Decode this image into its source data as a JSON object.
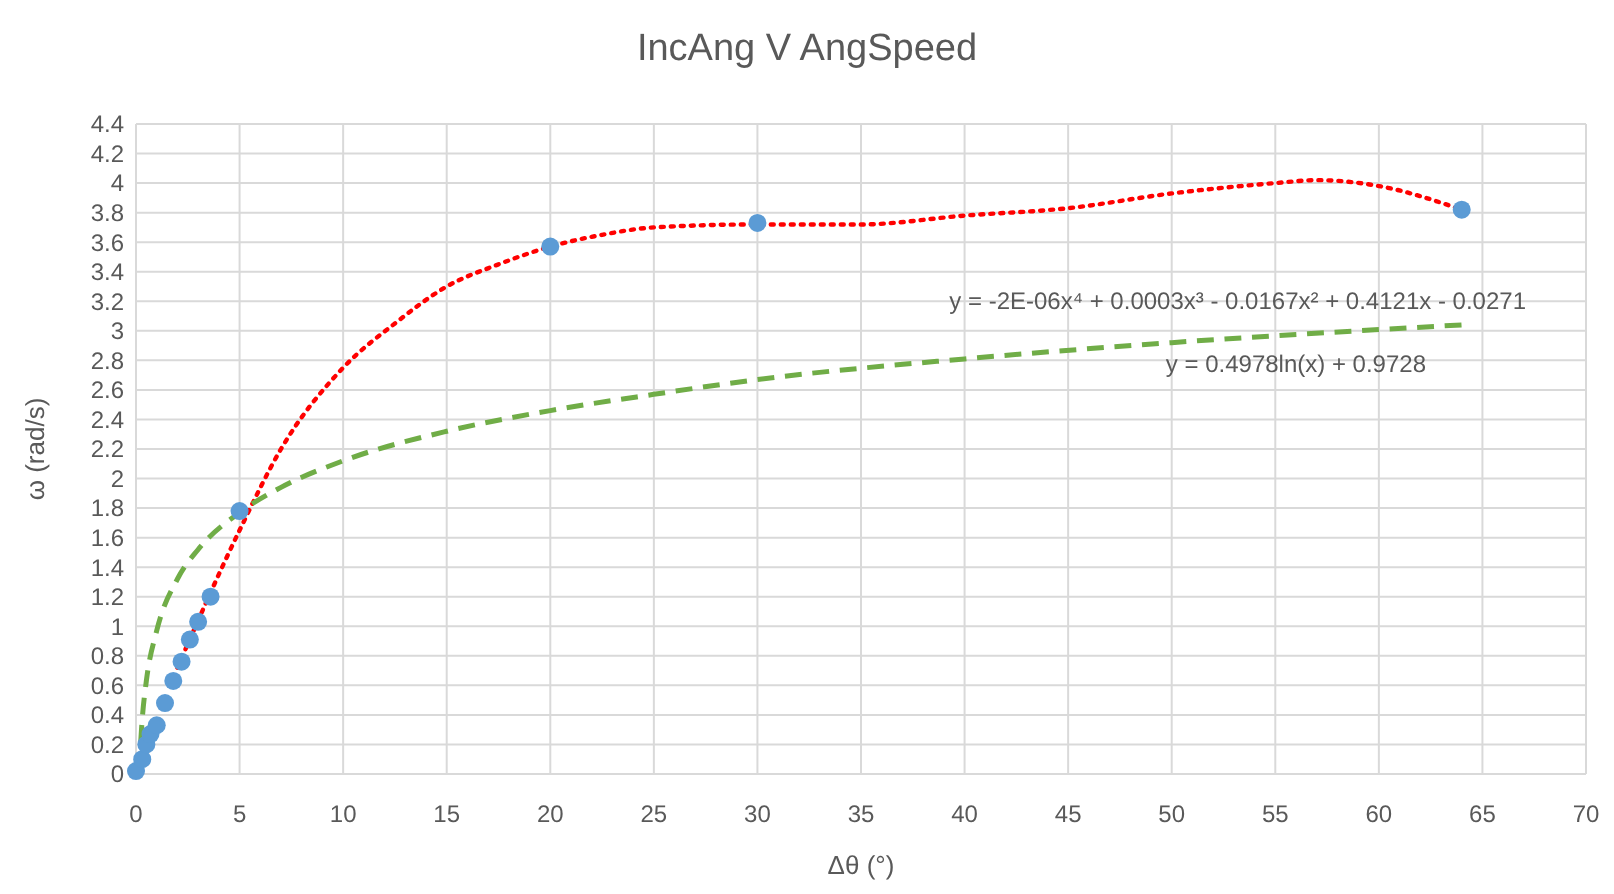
{
  "chart_data": {
    "type": "scatter",
    "title": "IncAng V AngSpeed",
    "xlabel": "Δθ (°)",
    "ylabel": "ω (rad/s)",
    "xlim": [
      0,
      70
    ],
    "xticks": [
      0,
      5,
      10,
      15,
      20,
      25,
      30,
      35,
      40,
      45,
      50,
      55,
      60,
      65,
      70
    ],
    "ylim": [
      0,
      4.4
    ],
    "yticks": [
      0,
      0.2,
      0.4,
      0.6,
      0.8,
      1,
      1.2,
      1.4,
      1.6,
      1.8,
      2,
      2.2,
      2.4,
      2.6,
      2.8,
      3,
      3.2,
      3.4,
      3.6,
      3.8,
      4,
      4.2,
      4.4
    ],
    "grid": true,
    "annotations": [
      "y = -2E-06x⁴ + 0.0003x³ - 0.0167x² + 0.4121x - 0.0271",
      "y = 0.4978ln(x) + 0.9728"
    ],
    "series": [
      {
        "type": "line",
        "color": "#ff0000",
        "line_style": "dotted",
        "marker": "none",
        "x": [
          2,
          5,
          7,
          10,
          12.5,
          15,
          17.5,
          20,
          22.5,
          25,
          30,
          35,
          40,
          45,
          50,
          55,
          57,
          60,
          64
        ],
        "values": [
          0.72,
          1.65,
          2.2,
          2.75,
          3.05,
          3.3,
          3.45,
          3.57,
          3.65,
          3.7,
          3.72,
          3.72,
          3.78,
          3.83,
          3.93,
          4.0,
          4.02,
          3.98,
          3.82
        ]
      },
      {
        "type": "line",
        "color": "#70ad47",
        "line_style": "dashed",
        "marker": "none",
        "x": [
          0.15,
          0.3,
          0.5,
          1,
          2,
          3,
          5,
          7,
          10,
          15,
          20,
          25,
          30,
          40,
          50,
          64
        ],
        "values": [
          0.03,
          0.37,
          0.63,
          0.97,
          1.32,
          1.52,
          1.77,
          1.94,
          2.12,
          2.32,
          2.46,
          2.57,
          2.67,
          2.81,
          2.92,
          3.04
        ]
      },
      {
        "type": "scatter",
        "color": "#5b9bd5",
        "marker": "circle",
        "x": [
          0,
          0.3,
          0.5,
          0.7,
          1,
          1.4,
          1.8,
          2.2,
          2.6,
          3,
          3.6,
          5,
          20,
          30,
          64
        ],
        "values": [
          0.02,
          0.1,
          0.2,
          0.27,
          0.33,
          0.48,
          0.63,
          0.76,
          0.91,
          1.03,
          1.2,
          1.78,
          3.57,
          3.73,
          3.82
        ]
      }
    ]
  }
}
